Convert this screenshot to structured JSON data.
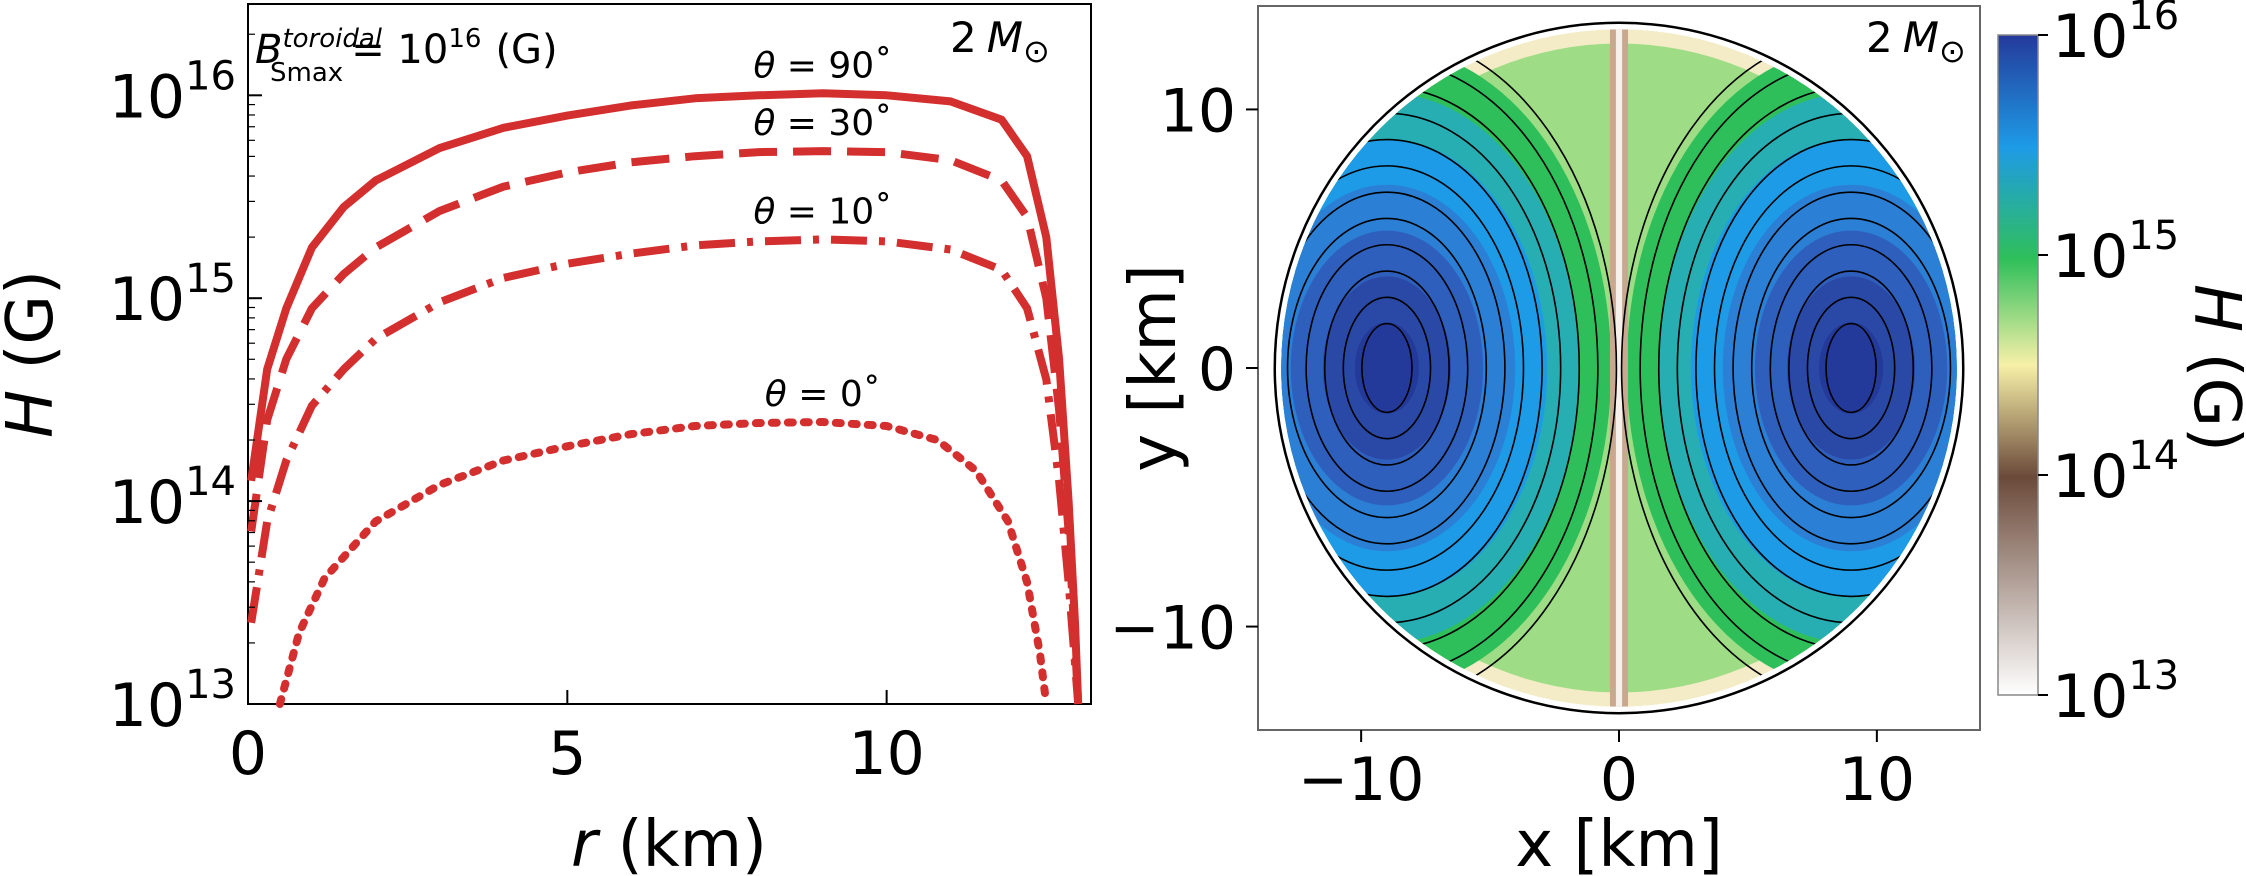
{
  "chart_data": [
    {
      "type": "line",
      "scale_y": "log",
      "title_annotation": {
        "lhs": "B",
        "sup": "toroidal",
        "sub": "Smax",
        "rhs": "= 10",
        "rhs_exp": "16",
        "unit": "(G)"
      },
      "mass_label": {
        "value": "2",
        "symbol": "M",
        "sub": "⊙"
      },
      "xlabel": {
        "var": "r",
        "unit": " (km)"
      },
      "ylabel": {
        "var": "H",
        "unit": " (G)"
      },
      "xlim": [
        0,
        13.2
      ],
      "ylim_log10": [
        13,
        16.45
      ],
      "xticks": [
        0,
        5,
        10
      ],
      "xtick_labels": [
        "0",
        "5",
        "10"
      ],
      "yticks_log10": [
        13,
        14,
        15,
        16
      ],
      "ytick_base": "10",
      "ytick_exps": [
        "13",
        "14",
        "15",
        "16"
      ],
      "series": [
        {
          "name": "θ = 90°",
          "label": "θ = 90˚",
          "style": "solid",
          "x": [
            0.05,
            0.3,
            0.6,
            1.0,
            1.5,
            2,
            3,
            4,
            5,
            6,
            7,
            8,
            9,
            10,
            11,
            11.8,
            12.2,
            12.5,
            12.7,
            12.85,
            12.95,
            13.0
          ],
          "log10_y": [
            14.1,
            14.65,
            14.95,
            15.25,
            15.45,
            15.58,
            15.74,
            15.84,
            15.9,
            15.95,
            15.985,
            16.0,
            16.01,
            16.0,
            15.97,
            15.88,
            15.7,
            15.3,
            14.7,
            14.0,
            13.4,
            13.0
          ]
        },
        {
          "name": "θ = 30°",
          "label": "θ = 30˚",
          "style": "dashed",
          "x": [
            0.05,
            0.3,
            0.6,
            1.0,
            1.5,
            2,
            3,
            4,
            5,
            6,
            7,
            8,
            9,
            10,
            11,
            11.8,
            12.2,
            12.5,
            12.7,
            12.85,
            12.95,
            13.0
          ],
          "log10_y": [
            13.85,
            14.4,
            14.7,
            14.95,
            15.12,
            15.25,
            15.43,
            15.55,
            15.62,
            15.67,
            15.7,
            15.72,
            15.725,
            15.72,
            15.68,
            15.58,
            15.4,
            15.0,
            14.45,
            13.85,
            13.3,
            13.0
          ]
        },
        {
          "name": "θ = 10°",
          "label": "θ = 10˚",
          "style": "dashdot",
          "x": [
            0.05,
            0.3,
            0.6,
            1.0,
            1.5,
            2,
            3,
            4,
            5,
            6,
            7,
            8,
            9,
            10,
            11,
            11.8,
            12.2,
            12.5,
            12.7,
            12.85,
            12.95,
            13.0
          ],
          "log10_y": [
            13.4,
            13.9,
            14.2,
            14.47,
            14.65,
            14.8,
            14.98,
            15.1,
            15.17,
            15.22,
            15.26,
            15.28,
            15.29,
            15.28,
            15.24,
            15.14,
            14.95,
            14.6,
            14.1,
            13.6,
            13.2,
            13.0
          ]
        },
        {
          "name": "θ = 0°",
          "label": "θ = 0˚",
          "style": "dotted",
          "x": [
            0.5,
            0.8,
            1.2,
            2,
            3,
            4,
            5,
            6,
            7,
            8,
            9,
            10,
            10.8,
            11.4,
            11.9,
            12.2,
            12.4,
            12.5
          ],
          "log10_y": [
            13.0,
            13.35,
            13.62,
            13.9,
            14.08,
            14.2,
            14.27,
            14.33,
            14.37,
            14.385,
            14.39,
            14.37,
            14.3,
            14.15,
            13.9,
            13.6,
            13.25,
            13.0
          ]
        }
      ]
    },
    {
      "type": "heatmap",
      "mass_label": {
        "value": "2",
        "symbol": "M",
        "sub": "⊙"
      },
      "xlabel": "x [km]",
      "ylabel": "y [km]",
      "xlim": [
        -14,
        14
      ],
      "ylim": [
        -14,
        14
      ],
      "xticks": [
        -10,
        0,
        10
      ],
      "xtick_labels": [
        "−10",
        "0",
        "10"
      ],
      "yticks": [
        -10,
        0,
        10
      ],
      "ytick_labels": [
        "−10",
        "0",
        "10"
      ],
      "star_radius_km": 13.1,
      "field_peak_x_km": 9,
      "contour_levels": 12,
      "colorbar": {
        "label": {
          "var": "H",
          "unit": " (G)"
        },
        "scale": "log",
        "range_log10": [
          13,
          16
        ],
        "ticks_log10": [
          13,
          14,
          15,
          16
        ],
        "tick_base": "10",
        "tick_exps": [
          "13",
          "14",
          "15",
          "16"
        ],
        "colormap": [
          "#ffffff",
          "#6b4a3a",
          "#f7f0a8",
          "#2fbf5a",
          "#1e9be6",
          "#243a9a"
        ]
      }
    }
  ]
}
